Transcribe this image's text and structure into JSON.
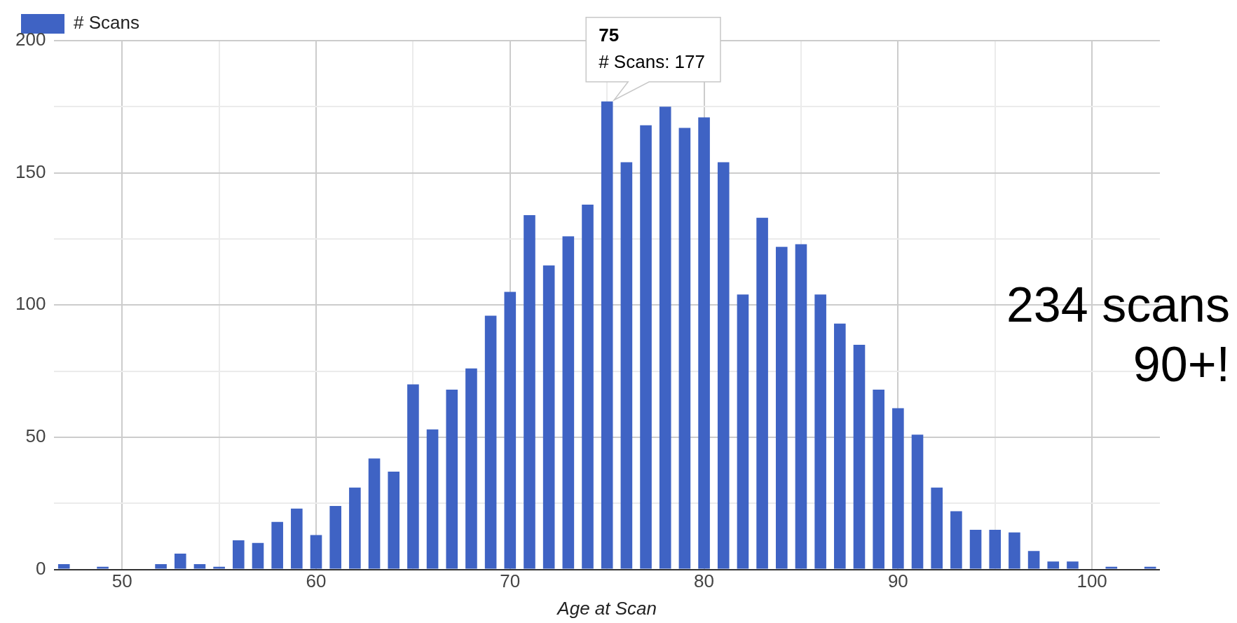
{
  "chart_data": {
    "type": "bar",
    "xlabel": "Age at Scan",
    "legend": "top left",
    "x": [
      47,
      48,
      49,
      50,
      51,
      52,
      53,
      54,
      55,
      56,
      57,
      58,
      59,
      60,
      61,
      62,
      63,
      64,
      65,
      66,
      67,
      68,
      69,
      70,
      71,
      72,
      73,
      74,
      75,
      76,
      77,
      78,
      79,
      80,
      81,
      82,
      83,
      84,
      85,
      86,
      87,
      88,
      89,
      90,
      91,
      92,
      93,
      94,
      95,
      96,
      97,
      98,
      99,
      100,
      101,
      102,
      103
    ],
    "series": [
      {
        "name": "# Scans",
        "color": "#3f63c4",
        "values": [
          2,
          0,
          1,
          0,
          0,
          2,
          6,
          2,
          1,
          11,
          10,
          18,
          23,
          13,
          24,
          31,
          42,
          37,
          70,
          53,
          68,
          76,
          96,
          105,
          134,
          115,
          126,
          138,
          177,
          154,
          168,
          175,
          167,
          171,
          154,
          104,
          133,
          122,
          123,
          104,
          93,
          85,
          68,
          61,
          51,
          31,
          22,
          15,
          15,
          14,
          7,
          3,
          3,
          0,
          1,
          0,
          1
        ]
      }
    ],
    "xlim": [
      46.5,
      103.5
    ],
    "xticks": [
      50,
      {
        "value": 55,
        "label": null
      },
      60,
      {
        "value": 65,
        "label": null
      },
      70,
      {
        "value": 75,
        "label": null
      },
      80,
      {
        "value": 85,
        "label": null
      },
      90,
      {
        "value": 95,
        "label": null
      },
      100
    ],
    "ylim": [
      0,
      200
    ],
    "yticks": [
      0,
      {
        "value": 25,
        "label": null
      },
      50,
      {
        "value": 75,
        "label": null
      },
      100,
      {
        "value": 125,
        "label": null
      },
      150,
      {
        "value": 175,
        "label": null
      },
      200
    ],
    "grid": true,
    "annotations": [
      {
        "text": "75\n# Scans: 177",
        "x": 75,
        "y": 177
      },
      "234 scans\n90+!"
    ]
  }
}
